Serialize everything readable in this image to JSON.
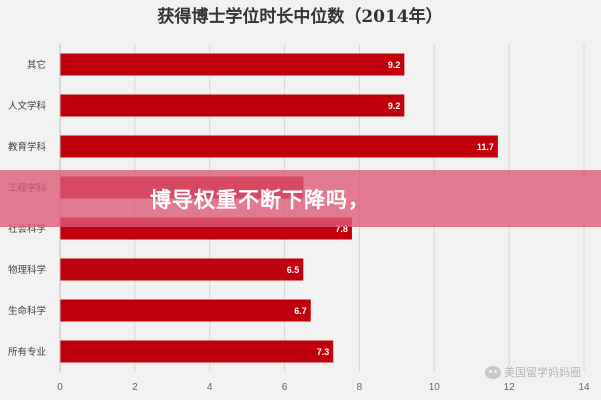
{
  "chart_data": {
    "type": "bar",
    "orientation": "horizontal",
    "title": "获得博士学位时长中位数（2014年）",
    "categories": [
      "其它",
      "人文学科",
      "教育学科",
      "工程学科",
      "社会科学",
      "物理科学",
      "生命科学",
      "所有专业"
    ],
    "values": [
      9.2,
      9.2,
      11.7,
      6.5,
      7.8,
      6.5,
      6.7,
      7.3
    ],
    "value_labels": [
      "9.2",
      "9.2",
      "11.7",
      "",
      "7.8",
      "6.5",
      "6.7",
      "7.3"
    ],
    "xlim": [
      0,
      14
    ],
    "xticks": [
      "0",
      "2",
      "4",
      "6",
      "8",
      "10",
      "12",
      "14"
    ],
    "grid": true,
    "bar_color": "#c0000c"
  },
  "banner": {
    "text": "博导权重不断下降吗，"
  },
  "watermark": {
    "icon": "wechat-icon",
    "text": "美国留学妈妈圈"
  }
}
